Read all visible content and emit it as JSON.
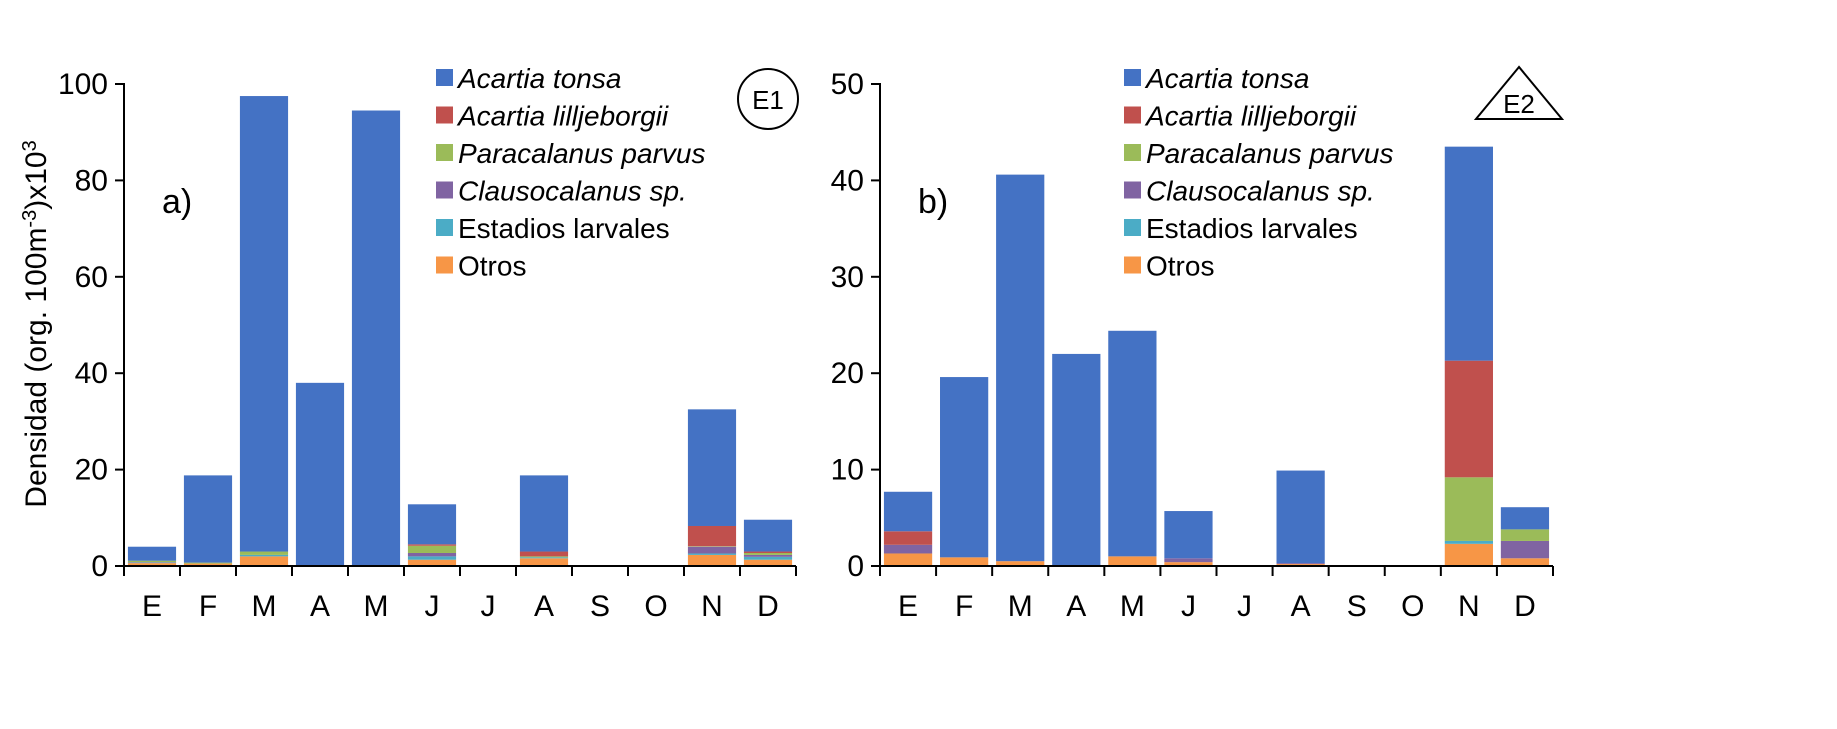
{
  "chart_data": [
    {
      "type": "bar",
      "stacked": true,
      "panel_label": "a)",
      "station": "E1",
      "station_symbol": "circle",
      "categories": [
        "E",
        "F",
        "M",
        "A",
        "M",
        "J",
        "J",
        "A",
        "S",
        "O",
        "N",
        "D"
      ],
      "ylim": [
        0,
        100
      ],
      "yticks": [
        0,
        20,
        40,
        60,
        80,
        100
      ],
      "ylabel_parts": [
        "Densidad (org. 100m",
        "-3",
        ")x10",
        "3"
      ],
      "series": [
        {
          "name": "Otros",
          "values": [
            0.6,
            0.5,
            2.0,
            0.0,
            0.0,
            1.3,
            0,
            1.6,
            0,
            0,
            2.3,
            1.3
          ]
        },
        {
          "name": "Estadios larvales",
          "values": [
            0.1,
            0.0,
            0.3,
            0.0,
            0.0,
            0.7,
            0,
            0.2,
            0,
            0,
            0.3,
            0.6
          ]
        },
        {
          "name": "Clausocalanus sp.",
          "values": [
            0.1,
            0.0,
            0.0,
            0.0,
            0.0,
            0.7,
            0,
            0.0,
            0,
            0,
            1.4,
            0.4
          ]
        },
        {
          "name": "Paracalanus parvus",
          "values": [
            0.3,
            0.2,
            0.7,
            0.0,
            0.0,
            1.5,
            0,
            0.2,
            0,
            0,
            0.1,
            0.4
          ]
        },
        {
          "name": "Acartia lilljeborgii",
          "values": [
            0.0,
            0.0,
            0.0,
            0.0,
            0.0,
            0.3,
            0,
            1.0,
            0,
            0,
            4.2,
            0.3
          ]
        },
        {
          "name": "Acartia tonsa",
          "values": [
            2.9,
            18.1,
            94.5,
            38.0,
            94.5,
            8.3,
            0,
            15.8,
            0,
            0,
            24.2,
            6.6
          ]
        }
      ]
    },
    {
      "type": "bar",
      "stacked": true,
      "panel_label": "b)",
      "station": "E2",
      "station_symbol": "triangle",
      "categories": [
        "E",
        "F",
        "M",
        "A",
        "M",
        "J",
        "J",
        "A",
        "S",
        "O",
        "N",
        "D"
      ],
      "ylim": [
        0,
        50
      ],
      "yticks": [
        0,
        10,
        20,
        30,
        40,
        50
      ],
      "series": [
        {
          "name": "Otros",
          "values": [
            1.3,
            0.9,
            0.5,
            0.0,
            1.0,
            0.4,
            0,
            0.2,
            0,
            0,
            2.3,
            0.8
          ]
        },
        {
          "name": "Estadios larvales",
          "values": [
            0.0,
            0.0,
            0.0,
            0.0,
            0.0,
            0.0,
            0,
            0.0,
            0,
            0,
            0.3,
            0.0
          ]
        },
        {
          "name": "Clausocalanus sp.",
          "values": [
            0.9,
            0.0,
            0.0,
            0.0,
            0.0,
            0.4,
            0,
            0.1,
            0,
            0,
            0.0,
            1.8
          ]
        },
        {
          "name": "Paracalanus parvus",
          "values": [
            0.0,
            0.0,
            0.0,
            0.0,
            0.0,
            0.0,
            0,
            0.0,
            0,
            0,
            6.6,
            1.2
          ]
        },
        {
          "name": "Acartia lilljeborgii",
          "values": [
            1.4,
            0.0,
            0.0,
            0.0,
            0.0,
            0.0,
            0,
            0.0,
            0,
            0,
            12.1,
            0.0
          ]
        },
        {
          "name": "Acartia tonsa",
          "values": [
            4.1,
            18.7,
            40.1,
            22.0,
            23.4,
            4.9,
            0,
            9.6,
            0,
            0,
            22.2,
            2.3
          ]
        }
      ]
    }
  ],
  "legend": [
    {
      "name": "Acartia tonsa",
      "italic": true
    },
    {
      "name": "Acartia lilljeborgii",
      "italic": true
    },
    {
      "name": "Paracalanus parvus",
      "italic": true
    },
    {
      "name": "Clausocalanus sp.",
      "italic": true
    },
    {
      "name": "Estadios larvales",
      "italic": false
    },
    {
      "name": "Otros",
      "italic": false
    }
  ],
  "colors": {
    "Acartia tonsa": "#4472C4",
    "Acartia lilljeborgii": "#C0504D",
    "Paracalanus parvus": "#9BBB59",
    "Clausocalanus sp.": "#8064A2",
    "Estadios larvales": "#4BACC6",
    "Otros": "#F79646",
    "axis": "#000000"
  }
}
